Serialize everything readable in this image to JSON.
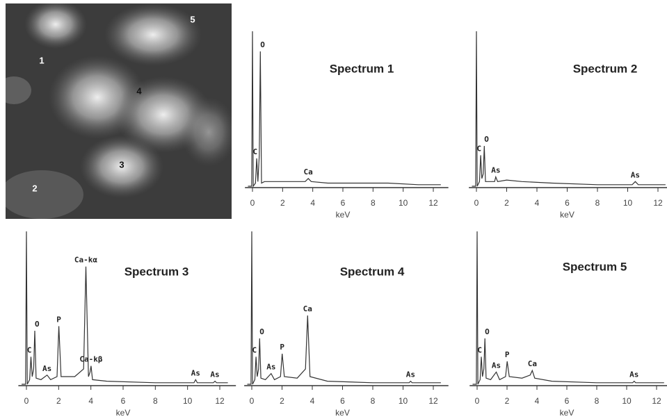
{
  "image": {
    "labels": [
      "1",
      "2",
      "3",
      "4",
      "5"
    ]
  },
  "chart_data": [
    {
      "type": "line",
      "title": "Spectrum 1",
      "xlabel": "keV",
      "color": "#333333",
      "x": [
        -0.3,
        -0.05,
        0,
        0.05,
        0.2,
        0.28,
        0.36,
        0.45,
        0.52,
        0.6,
        0.8,
        1.5,
        2.5,
        3.5,
        3.7,
        3.9,
        5,
        7,
        9,
        11,
        12.5
      ],
      "values": [
        0,
        0,
        100,
        0,
        2,
        18,
        3,
        20,
        87,
        2,
        3,
        3,
        3,
        3,
        5,
        3,
        2,
        2,
        2,
        1,
        1
      ],
      "xlim": [
        -0.5,
        13
      ],
      "xticks": [
        0,
        2,
        4,
        6,
        8,
        10,
        12
      ],
      "ylim": [
        0,
        100
      ],
      "annotations": [
        {
          "text": "C",
          "x": 0.28
        },
        {
          "text": "O",
          "x": 0.52
        },
        {
          "text": "Ca",
          "x": 3.7
        }
      ]
    },
    {
      "type": "line",
      "title": "Spectrum 2",
      "xlabel": "keV",
      "color": "#333333",
      "x": [
        -0.3,
        -0.05,
        0,
        0.05,
        0.2,
        0.28,
        0.36,
        0.45,
        0.52,
        0.6,
        0.8,
        1.2,
        1.28,
        1.4,
        2,
        3,
        5,
        8,
        10.3,
        10.5,
        10.7,
        12.5
      ],
      "values": [
        0,
        0,
        100,
        0,
        3,
        20,
        5,
        8,
        26,
        3,
        3,
        3,
        6,
        3,
        4,
        3,
        2,
        1,
        1,
        3,
        1,
        1
      ],
      "xlim": [
        -0.5,
        13
      ],
      "xticks": [
        0,
        2,
        4,
        6,
        8,
        10,
        12
      ],
      "ylim": [
        0,
        100
      ],
      "annotations": [
        {
          "text": "C",
          "x": 0.28
        },
        {
          "text": "O",
          "x": 0.52
        },
        {
          "text": "As",
          "x": 1.28
        },
        {
          "text": "As",
          "x": 10.5
        }
      ]
    },
    {
      "type": "line",
      "title": "Spectrum 3",
      "xlabel": "keV",
      "color": "#333333",
      "x": [
        -0.3,
        -0.05,
        0,
        0.05,
        0.2,
        0.28,
        0.36,
        0.45,
        0.52,
        0.6,
        0.9,
        1.28,
        1.5,
        1.9,
        2.01,
        2.15,
        3.0,
        3.55,
        3.69,
        3.85,
        3.95,
        4.01,
        4.1,
        5,
        8,
        10.4,
        10.5,
        10.6,
        11.6,
        11.7,
        11.8,
        12.5
      ],
      "values": [
        0,
        0,
        100,
        0,
        3,
        18,
        5,
        10,
        35,
        4,
        3,
        6,
        3,
        5,
        38,
        5,
        5,
        10,
        77,
        5,
        8,
        12,
        3,
        2,
        1,
        1,
        3,
        1,
        1,
        2,
        1,
        1
      ],
      "xlim": [
        -0.5,
        13
      ],
      "xticks": [
        0,
        2,
        4,
        6,
        8,
        10,
        12
      ],
      "ylim": [
        0,
        100
      ],
      "annotations": [
        {
          "text": "C",
          "x": 0.28
        },
        {
          "text": "O",
          "x": 0.52
        },
        {
          "text": "As",
          "x": 1.28
        },
        {
          "text": "P",
          "x": 2.01
        },
        {
          "text": "Ca-kα",
          "x": 3.69
        },
        {
          "text": "Ca-kβ",
          "x": 4.01
        },
        {
          "text": "As",
          "x": 10.5
        },
        {
          "text": "As",
          "x": 11.7
        }
      ]
    },
    {
      "type": "line",
      "title": "Spectrum 4",
      "xlabel": "keV",
      "color": "#333333",
      "x": [
        -0.3,
        -0.05,
        0,
        0.05,
        0.2,
        0.28,
        0.36,
        0.45,
        0.52,
        0.6,
        0.9,
        1.28,
        1.5,
        1.9,
        2.01,
        2.15,
        3.0,
        3.55,
        3.69,
        3.85,
        5,
        8,
        10.4,
        10.5,
        10.6,
        12.5
      ],
      "values": [
        0,
        0,
        100,
        0,
        3,
        18,
        5,
        10,
        30,
        4,
        3,
        7,
        3,
        5,
        20,
        5,
        4,
        10,
        45,
        5,
        2,
        1,
        1,
        2,
        1,
        1
      ],
      "xlim": [
        -0.5,
        13
      ],
      "xticks": [
        0,
        2,
        4,
        6,
        8,
        10,
        12
      ],
      "ylim": [
        0,
        100
      ],
      "annotations": [
        {
          "text": "C",
          "x": 0.28
        },
        {
          "text": "O",
          "x": 0.52
        },
        {
          "text": "As",
          "x": 1.28
        },
        {
          "text": "P",
          "x": 2.01
        },
        {
          "text": "Ca",
          "x": 3.69
        },
        {
          "text": "As",
          "x": 10.5
        }
      ]
    },
    {
      "type": "line",
      "title": "Spectrum 5",
      "xlabel": "keV",
      "color": "#333333",
      "x": [
        -0.3,
        -0.05,
        0,
        0.05,
        0.2,
        0.28,
        0.36,
        0.45,
        0.52,
        0.6,
        0.9,
        1.28,
        1.5,
        1.9,
        2.01,
        2.15,
        3.0,
        3.55,
        3.69,
        3.85,
        5,
        8,
        10.4,
        10.5,
        10.6,
        12.5
      ],
      "values": [
        0,
        0,
        100,
        0,
        3,
        18,
        5,
        10,
        30,
        4,
        3,
        8,
        3,
        5,
        15,
        5,
        4,
        6,
        9,
        4,
        2,
        1,
        1,
        2,
        1,
        1
      ],
      "xlim": [
        -0.5,
        13
      ],
      "xticks": [
        0,
        2,
        4,
        6,
        8,
        10,
        12
      ],
      "ylim": [
        0,
        100
      ],
      "annotations": [
        {
          "text": "C",
          "x": 0.28
        },
        {
          "text": "O",
          "x": 0.52
        },
        {
          "text": "As",
          "x": 1.28
        },
        {
          "text": "P",
          "x": 2.01
        },
        {
          "text": "Ca",
          "x": 3.69
        },
        {
          "text": "As",
          "x": 10.5
        }
      ]
    }
  ]
}
